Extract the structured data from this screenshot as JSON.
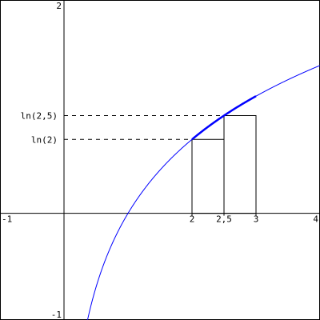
{
  "chart_data": {
    "type": "line",
    "title": "",
    "xlabel": "",
    "ylabel": "",
    "xlim": [
      -1,
      4
    ],
    "ylim": [
      -1,
      2
    ],
    "grid": false,
    "function": "ln(x)",
    "curve_color": "#0000ff",
    "highlight": {
      "from": 2,
      "to": 3,
      "color": "#0000ff"
    },
    "x_tick_labels": [
      {
        "value": -1,
        "label": "-1"
      },
      {
        "value": 2,
        "label": "2"
      },
      {
        "value": 2.5,
        "label": "2,5"
      },
      {
        "value": 3,
        "label": "3"
      },
      {
        "value": 4,
        "label": "4"
      }
    ],
    "y_tick_labels": [
      {
        "value": 2,
        "label": "2"
      },
      {
        "value": -1,
        "label": "-1"
      }
    ],
    "guide_labels": [
      {
        "x": 2,
        "y": 0.6931,
        "label": "ln(2)"
      },
      {
        "x": 2.5,
        "y": 0.9163,
        "label": "ln(2,5)"
      }
    ],
    "rectangles": [
      {
        "x0": 2,
        "x1": 2.5,
        "height": 0.6931
      },
      {
        "x0": 2.5,
        "x1": 3,
        "height": 0.9163
      }
    ]
  }
}
